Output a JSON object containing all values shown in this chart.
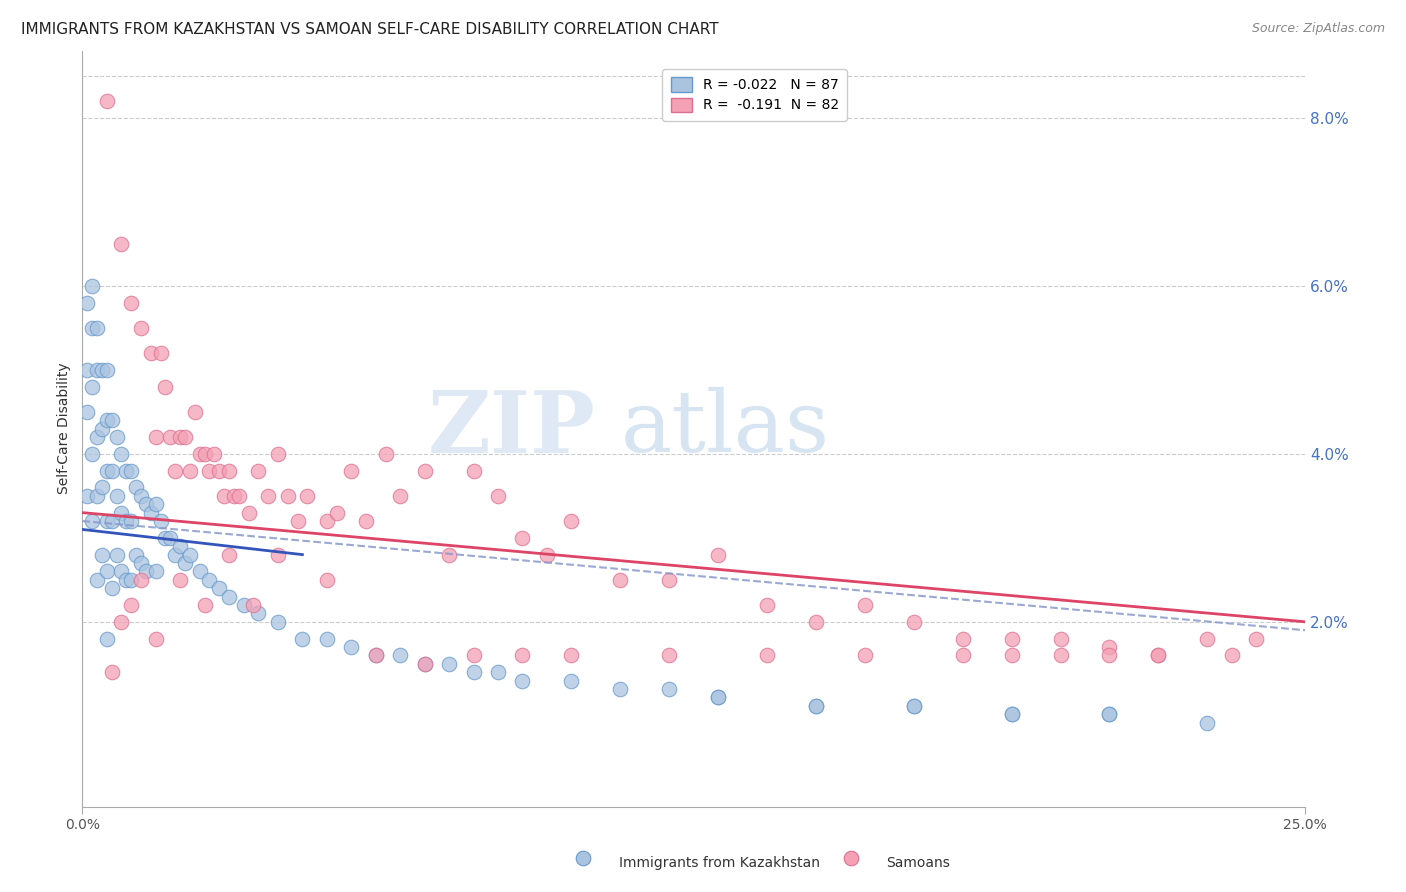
{
  "title": "IMMIGRANTS FROM KAZAKHSTAN VS SAMOAN SELF-CARE DISABILITY CORRELATION CHART",
  "source": "Source: ZipAtlas.com",
  "ylabel": "Self-Care Disability",
  "legend_label1": "Immigrants from Kazakhstan",
  "legend_label2": "Samoans",
  "R1": -0.022,
  "N1": 87,
  "R2": -0.191,
  "N2": 82,
  "color1": "#aac4e0",
  "color2": "#f4a0b5",
  "edge_color1": "#6699cc",
  "edge_color2": "#dd7090",
  "trend_color1": "#3355bb",
  "trend_color2": "#dd4466",
  "dash_color": "#8899cc",
  "xlim": [
    0.0,
    0.25
  ],
  "ylim": [
    -0.002,
    0.088
  ],
  "yticks_right": [
    0.02,
    0.04,
    0.06,
    0.08
  ],
  "ytick_labels_right": [
    "2.0%",
    "4.0%",
    "6.0%",
    "8.0%"
  ],
  "xtick_vals": [
    0.0,
    0.25
  ],
  "xtick_labels": [
    "0.0%",
    "25.0%"
  ],
  "grid_color": "#cccccc",
  "background_color": "#ffffff",
  "watermark": "ZIPatlas",
  "watermark_color1": "#c5d8ef",
  "watermark_color2": "#a8c4e4",
  "title_fontsize": 11,
  "axis_label_fontsize": 10,
  "tick_fontsize": 10,
  "legend_fontsize": 10,
  "source_fontsize": 9,
  "blue_x": [
    0.001,
    0.001,
    0.001,
    0.001,
    0.002,
    0.002,
    0.002,
    0.002,
    0.002,
    0.003,
    0.003,
    0.003,
    0.003,
    0.003,
    0.004,
    0.004,
    0.004,
    0.004,
    0.005,
    0.005,
    0.005,
    0.005,
    0.005,
    0.005,
    0.006,
    0.006,
    0.006,
    0.006,
    0.007,
    0.007,
    0.007,
    0.008,
    0.008,
    0.008,
    0.009,
    0.009,
    0.009,
    0.01,
    0.01,
    0.01,
    0.011,
    0.011,
    0.012,
    0.012,
    0.013,
    0.013,
    0.014,
    0.015,
    0.015,
    0.016,
    0.017,
    0.018,
    0.019,
    0.02,
    0.021,
    0.022,
    0.024,
    0.026,
    0.028,
    0.03,
    0.033,
    0.036,
    0.04,
    0.045,
    0.05,
    0.055,
    0.06,
    0.065,
    0.07,
    0.075,
    0.08,
    0.085,
    0.09,
    0.1,
    0.11,
    0.12,
    0.13,
    0.15,
    0.17,
    0.19,
    0.21,
    0.23,
    0.21,
    0.19,
    0.17,
    0.15,
    0.13
  ],
  "blue_y": [
    0.058,
    0.05,
    0.045,
    0.035,
    0.06,
    0.055,
    0.048,
    0.04,
    0.032,
    0.055,
    0.05,
    0.042,
    0.035,
    0.025,
    0.05,
    0.043,
    0.036,
    0.028,
    0.05,
    0.044,
    0.038,
    0.032,
    0.026,
    0.018,
    0.044,
    0.038,
    0.032,
    0.024,
    0.042,
    0.035,
    0.028,
    0.04,
    0.033,
    0.026,
    0.038,
    0.032,
    0.025,
    0.038,
    0.032,
    0.025,
    0.036,
    0.028,
    0.035,
    0.027,
    0.034,
    0.026,
    0.033,
    0.034,
    0.026,
    0.032,
    0.03,
    0.03,
    0.028,
    0.029,
    0.027,
    0.028,
    0.026,
    0.025,
    0.024,
    0.023,
    0.022,
    0.021,
    0.02,
    0.018,
    0.018,
    0.017,
    0.016,
    0.016,
    0.015,
    0.015,
    0.014,
    0.014,
    0.013,
    0.013,
    0.012,
    0.012,
    0.011,
    0.01,
    0.01,
    0.009,
    0.009,
    0.008,
    0.009,
    0.009,
    0.01,
    0.01,
    0.011
  ],
  "pink_x": [
    0.005,
    0.008,
    0.01,
    0.012,
    0.014,
    0.015,
    0.016,
    0.017,
    0.018,
    0.019,
    0.02,
    0.021,
    0.022,
    0.023,
    0.024,
    0.025,
    0.026,
    0.027,
    0.028,
    0.029,
    0.03,
    0.031,
    0.032,
    0.034,
    0.036,
    0.038,
    0.04,
    0.042,
    0.044,
    0.046,
    0.05,
    0.052,
    0.055,
    0.058,
    0.062,
    0.065,
    0.07,
    0.075,
    0.08,
    0.085,
    0.09,
    0.095,
    0.1,
    0.11,
    0.12,
    0.13,
    0.14,
    0.15,
    0.16,
    0.17,
    0.18,
    0.19,
    0.2,
    0.21,
    0.22,
    0.23,
    0.235,
    0.24,
    0.22,
    0.21,
    0.2,
    0.19,
    0.18,
    0.16,
    0.14,
    0.12,
    0.1,
    0.09,
    0.08,
    0.07,
    0.06,
    0.05,
    0.04,
    0.035,
    0.03,
    0.025,
    0.02,
    0.015,
    0.012,
    0.01,
    0.008,
    0.006
  ],
  "pink_y": [
    0.082,
    0.065,
    0.058,
    0.055,
    0.052,
    0.042,
    0.052,
    0.048,
    0.042,
    0.038,
    0.042,
    0.042,
    0.038,
    0.045,
    0.04,
    0.04,
    0.038,
    0.04,
    0.038,
    0.035,
    0.038,
    0.035,
    0.035,
    0.033,
    0.038,
    0.035,
    0.04,
    0.035,
    0.032,
    0.035,
    0.032,
    0.033,
    0.038,
    0.032,
    0.04,
    0.035,
    0.038,
    0.028,
    0.038,
    0.035,
    0.03,
    0.028,
    0.032,
    0.025,
    0.025,
    0.028,
    0.022,
    0.02,
    0.022,
    0.02,
    0.018,
    0.018,
    0.018,
    0.017,
    0.016,
    0.018,
    0.016,
    0.018,
    0.016,
    0.016,
    0.016,
    0.016,
    0.016,
    0.016,
    0.016,
    0.016,
    0.016,
    0.016,
    0.016,
    0.015,
    0.016,
    0.025,
    0.028,
    0.022,
    0.028,
    0.022,
    0.025,
    0.018,
    0.025,
    0.022,
    0.02,
    0.014
  ],
  "blue_trend_x": [
    0.0,
    0.045
  ],
  "blue_trend_y_start": 0.031,
  "blue_trend_y_end": 0.028,
  "dash_trend_x": [
    0.0,
    0.25
  ],
  "dash_trend_y_start": 0.032,
  "dash_trend_y_end": 0.019,
  "pink_trend_x": [
    0.0,
    0.25
  ],
  "pink_trend_y_start": 0.033,
  "pink_trend_y_end": 0.02
}
